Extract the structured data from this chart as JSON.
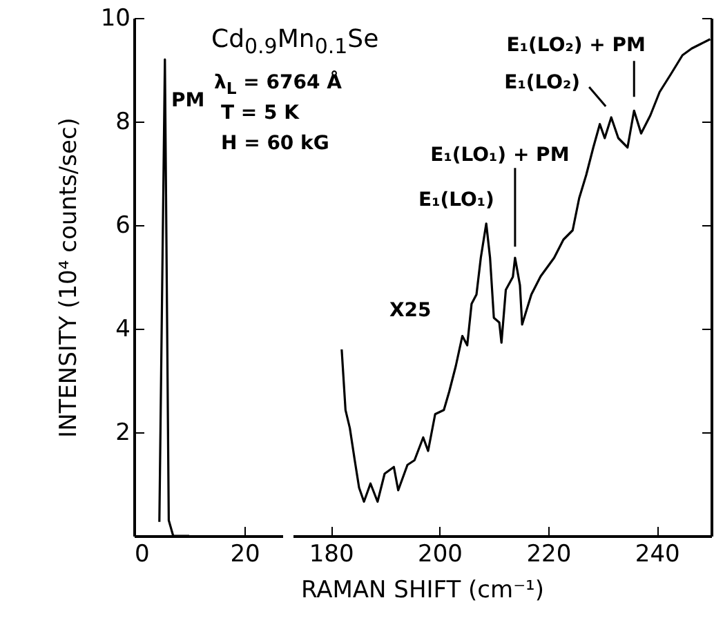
{
  "chart_data": [
    {
      "type": "line",
      "color": "#000000",
      "ylabel": "INTENSITY (10⁴ counts/sec)",
      "xlim": [
        0,
        27
      ],
      "xticks": [
        0,
        20
      ],
      "ylim": [
        0,
        10
      ],
      "yticks": [
        2,
        4,
        6,
        8,
        10
      ],
      "x": [
        4.6,
        5.6,
        6.3,
        7.1,
        10
      ],
      "values": [
        0.27,
        9.2,
        0.3,
        0,
        0
      ],
      "annotations": [
        "PM"
      ]
    },
    {
      "type": "line",
      "color": "#000000",
      "xlabel": "RAMAN SHIFT (cm⁻¹)",
      "xlim": [
        173,
        250
      ],
      "xticks": [
        180,
        200,
        220,
        240
      ],
      "ylim": [
        0,
        10
      ],
      "yticks": [
        2,
        4,
        6,
        8,
        10
      ],
      "tick_labels": "x",
      "x": [
        182.0,
        182.7,
        183.5,
        184.4,
        185.2,
        186.1,
        187.3,
        188.6,
        189.9,
        191.6,
        192.4,
        194.1,
        195.4,
        197.0,
        197.9,
        199.2,
        200.8,
        201.8,
        203.0,
        204.2,
        205.1,
        205.9,
        206.8,
        207.6,
        208.6,
        209.3,
        210.0,
        211.0,
        211.4,
        212.2,
        213.5,
        213.9,
        214.8,
        215.2,
        216.9,
        218.6,
        221.1,
        222.8,
        224.5,
        225.7,
        227.0,
        228.3,
        229.5,
        230.4,
        231.6,
        232.9,
        234.6,
        235.8,
        237.1,
        238.8,
        240.5,
        242.6,
        244.7,
        246.4,
        248.1,
        249.8
      ],
      "values": [
        3.6,
        2.43,
        2.08,
        1.46,
        0.93,
        0.66,
        1.01,
        0.66,
        1.2,
        1.33,
        0.88,
        1.37,
        1.46,
        1.9,
        1.64,
        2.35,
        2.43,
        2.79,
        3.28,
        3.86,
        3.68,
        4.48,
        4.66,
        5.37,
        6.03,
        5.37,
        4.21,
        4.12,
        3.73,
        4.75,
        5.0,
        5.37,
        4.84,
        4.08,
        4.66,
        5.01,
        5.37,
        5.72,
        5.9,
        6.52,
        6.97,
        7.5,
        7.95,
        7.68,
        8.08,
        7.68,
        7.5,
        8.21,
        7.77,
        8.12,
        8.57,
        8.92,
        9.28,
        9.41,
        9.5,
        9.59
      ],
      "annotations": [
        "Cd$_{0.9}$Mn$_{0.1}$Se",
        "λ$_{L}$ = 6764 Å",
        "T = 5 K",
        "H = 60 kG",
        "X25",
        "E₁(LO₁)",
        {
          "text": "E₁(LO₁) + PM",
          "x": 213.9,
          "y": 5.37
        },
        {
          "text": "E₁(LO₂) + PM",
          "x": 235.8,
          "y": 8.21
        },
        {
          "text": "E₁(LO₂)",
          "x": 231.6,
          "y": 8.08
        }
      ]
    }
  ]
}
